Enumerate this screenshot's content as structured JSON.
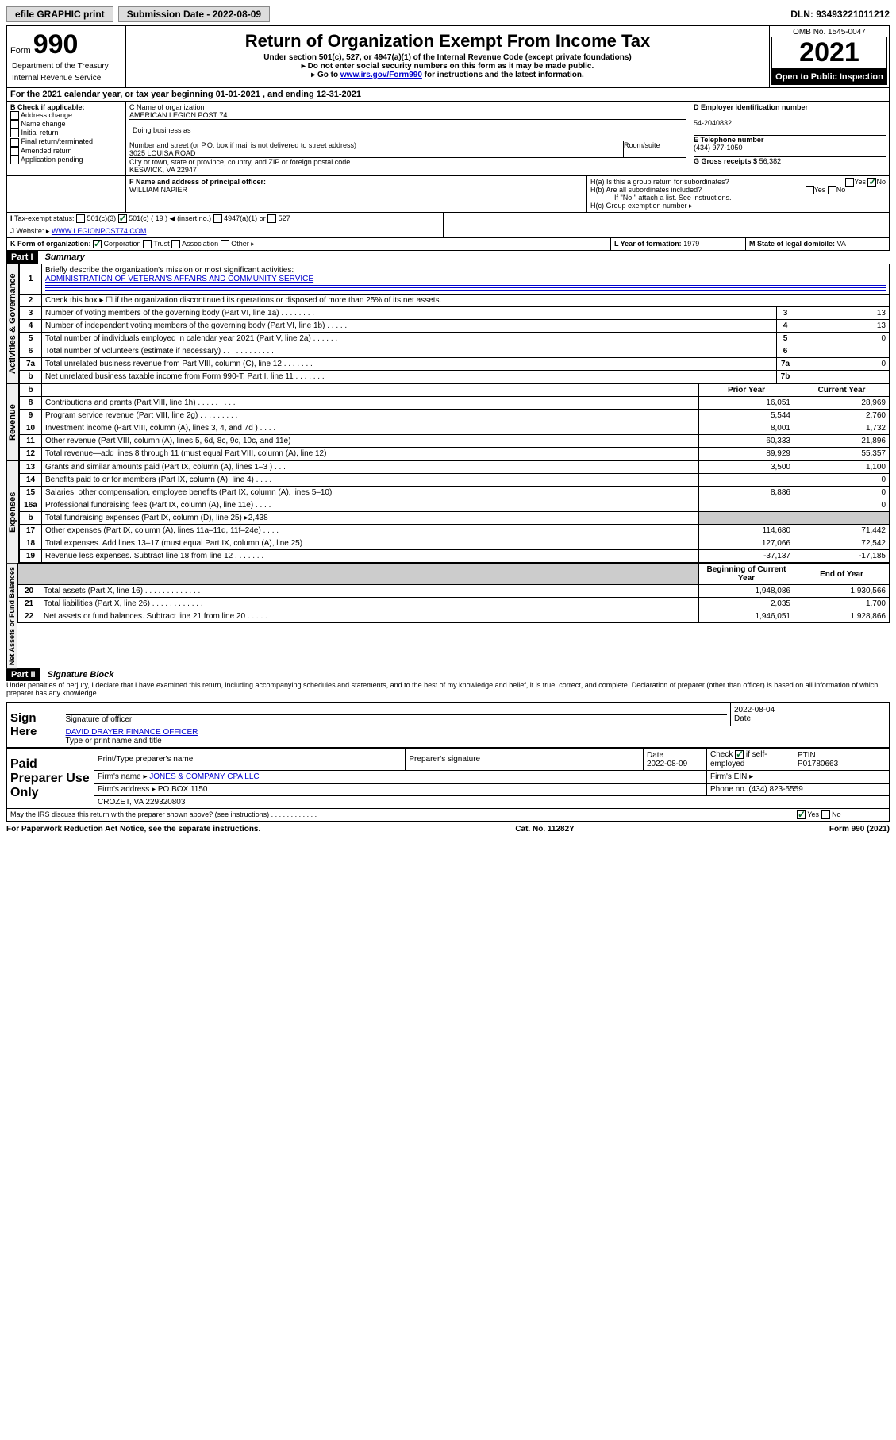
{
  "topbar": {
    "efile": "efile GRAPHIC print",
    "sub_label": "Submission Date - 2022-08-09",
    "dln": "DLN: 93493221011212"
  },
  "header": {
    "form_word": "Form",
    "form_num": "990",
    "dept1": "Department of the Treasury",
    "dept2": "Internal Revenue Service",
    "title": "Return of Organization Exempt From Income Tax",
    "sub1": "Under section 501(c), 527, or 4947(a)(1) of the Internal Revenue Code (except private foundations)",
    "sub2": "▸ Do not enter social security numbers on this form as it may be made public.",
    "sub3_pre": "▸ Go to ",
    "sub3_link": "www.irs.gov/Form990",
    "sub3_post": " for instructions and the latest information.",
    "omb": "OMB No. 1545-0047",
    "year": "2021",
    "open": "Open to Public Inspection"
  },
  "periodA": "For the 2021 calendar year, or tax year beginning 01-01-2021    , and ending 12-31-2021",
  "boxB": {
    "label": "B Check if applicable:",
    "items": [
      "Address change",
      "Name change",
      "Initial return",
      "Final return/terminated",
      "Amended return",
      "Application pending"
    ]
  },
  "boxC": {
    "name_label": "C Name of organization",
    "name": "AMERICAN LEGION POST 74",
    "dba_label": "Doing business as",
    "addr_label": "Number and street (or P.O. box if mail is not delivered to street address)",
    "room_label": "Room/suite",
    "addr": "3025 LOUISA ROAD",
    "city_label": "City or town, state or province, country, and ZIP or foreign postal code",
    "city": "KESWICK, VA  22947"
  },
  "boxD": {
    "label": "D Employer identification number",
    "value": "54-2040832"
  },
  "boxE": {
    "label": "E Telephone number",
    "value": "(434) 977-1050"
  },
  "boxG": {
    "label": "G Gross receipts $",
    "value": "56,382"
  },
  "boxF": {
    "label": "F Name and address of principal officer:",
    "value": "WILLIAM NAPIER"
  },
  "boxH": {
    "ha": "H(a)  Is this a group return for subordinates?",
    "hb": "H(b)  Are all subordinates included?",
    "hb_note": "If \"No,\" attach a list. See instructions.",
    "hc": "H(c)  Group exemption number ▸"
  },
  "yn": {
    "yes": "Yes",
    "no": "No"
  },
  "lineI": {
    "label": "Tax-exempt status:",
    "opts": [
      "501(c)(3)",
      "501(c) ( 19 ) ◀ (insert no.)",
      "4947(a)(1) or",
      "527"
    ]
  },
  "lineJ": {
    "label": "Website: ▸",
    "value": "WWW.LEGIONPOST74.COM"
  },
  "lineK": {
    "label": "K Form of organization:",
    "opts": [
      "Corporation",
      "Trust",
      "Association",
      "Other ▸"
    ]
  },
  "lineL": {
    "label": "L Year of formation:",
    "value": "1979"
  },
  "lineM": {
    "label": "M State of legal domicile:",
    "value": "VA"
  },
  "part1": {
    "hdr": "Part I",
    "title": "Summary"
  },
  "summary": {
    "q1": "Briefly describe the organization's mission or most significant activities:",
    "q1v": "ADMINISTRATION OF VETERAN'S AFFAIRS AND COMMUNITY SERVICE",
    "q2": "Check this box ▸ ☐ if the organization discontinued its operations or disposed of more than 25% of its net assets.",
    "rows_gov": [
      {
        "n": "3",
        "t": "Number of voting members of the governing body (Part VI, line 1a)   .   .   .   .   .   .   .   .",
        "l": "3",
        "v": "13"
      },
      {
        "n": "4",
        "t": "Number of independent voting members of the governing body (Part VI, line 1b)  .   .   .   .   .",
        "l": "4",
        "v": "13"
      },
      {
        "n": "5",
        "t": "Total number of individuals employed in calendar year 2021 (Part V, line 2a)  .   .   .   .   .   .",
        "l": "5",
        "v": "0"
      },
      {
        "n": "6",
        "t": "Total number of volunteers (estimate if necessary)   .   .   .   .   .   .   .   .   .   .   .   .",
        "l": "6",
        "v": ""
      },
      {
        "n": "7a",
        "t": "Total unrelated business revenue from Part VIII, column (C), line 12  .   .   .   .   .   .   .",
        "l": "7a",
        "v": "0"
      },
      {
        "n": "b",
        "t": "Net unrelated business taxable income from Form 990-T, Part I, line 11  .   .   .   .   .   .   .",
        "l": "7b",
        "v": ""
      }
    ],
    "col_prior": "Prior Year",
    "col_current": "Current Year",
    "rows_rev": [
      {
        "n": "8",
        "t": "Contributions and grants (Part VIII, line 1h)   .   .   .   .   .   .   .   .   .",
        "p": "16,051",
        "c": "28,969"
      },
      {
        "n": "9",
        "t": "Program service revenue (Part VIII, line 2g)   .   .   .   .   .   .   .   .   .",
        "p": "5,544",
        "c": "2,760"
      },
      {
        "n": "10",
        "t": "Investment income (Part VIII, column (A), lines 3, 4, and 7d )   .   .   .   .",
        "p": "8,001",
        "c": "1,732"
      },
      {
        "n": "11",
        "t": "Other revenue (Part VIII, column (A), lines 5, 6d, 8c, 9c, 10c, and 11e)",
        "p": "60,333",
        "c": "21,896"
      },
      {
        "n": "12",
        "t": "Total revenue—add lines 8 through 11 (must equal Part VIII, column (A), line 12)",
        "p": "89,929",
        "c": "55,357"
      }
    ],
    "rows_exp": [
      {
        "n": "13",
        "t": "Grants and similar amounts paid (Part IX, column (A), lines 1–3 )   .   .   .",
        "p": "3,500",
        "c": "1,100"
      },
      {
        "n": "14",
        "t": "Benefits paid to or for members (Part IX, column (A), line 4)   .   .   .   .",
        "p": "",
        "c": "0"
      },
      {
        "n": "15",
        "t": "Salaries, other compensation, employee benefits (Part IX, column (A), lines 5–10)",
        "p": "8,886",
        "c": "0"
      },
      {
        "n": "16a",
        "t": "Professional fundraising fees (Part IX, column (A), line 11e)   .   .   .   .",
        "p": "",
        "c": "0"
      },
      {
        "n": "b",
        "t": "Total fundraising expenses (Part IX, column (D), line 25) ▸2,438",
        "p": "GREY",
        "c": "GREY"
      },
      {
        "n": "17",
        "t": "Other expenses (Part IX, column (A), lines 11a–11d, 11f–24e)  .   .   .   .",
        "p": "114,680",
        "c": "71,442"
      },
      {
        "n": "18",
        "t": "Total expenses. Add lines 13–17 (must equal Part IX, column (A), line 25)",
        "p": "127,066",
        "c": "72,542"
      },
      {
        "n": "19",
        "t": "Revenue less expenses. Subtract line 18 from line 12   .   .   .   .   .   .   .",
        "p": "-37,137",
        "c": "-17,185"
      }
    ],
    "col_begin": "Beginning of Current Year",
    "col_end": "End of Year",
    "rows_net": [
      {
        "n": "20",
        "t": "Total assets (Part X, line 16)   .   .   .   .   .   .   .   .   .   .   .   .   .",
        "p": "1,948,086",
        "c": "1,930,566"
      },
      {
        "n": "21",
        "t": "Total liabilities (Part X, line 26)   .   .   .   .   .   .   .   .   .   .   .   .",
        "p": "2,035",
        "c": "1,700"
      },
      {
        "n": "22",
        "t": "Net assets or fund balances. Subtract line 21 from line 20   .   .   .   .   .",
        "p": "1,946,051",
        "c": "1,928,866"
      }
    ]
  },
  "vlabels": {
    "gov": "Activities & Governance",
    "rev": "Revenue",
    "exp": "Expenses",
    "net": "Net Assets or Fund Balances"
  },
  "part2": {
    "hdr": "Part II",
    "title": "Signature Block"
  },
  "perjury": "Under penalties of perjury, I declare that I have examined this return, including accompanying schedules and statements, and to the best of my knowledge and belief, it is true, correct, and complete. Declaration of preparer (other than officer) is based on all information of which preparer has any knowledge.",
  "sign": {
    "here": "Sign Here",
    "sig_label": "Signature of officer",
    "date_label": "Date",
    "date": "2022-08-04",
    "name": "DAVID DRAYER FINANCE OFFICER",
    "name_label": "Type or print name and title"
  },
  "paid": {
    "label": "Paid Preparer Use Only",
    "c1": "Print/Type preparer's name",
    "c2": "Preparer's signature",
    "c3": "Date",
    "c3v": "2022-08-09",
    "c4": "Check ☑ if self-employed",
    "c5": "PTIN",
    "c5v": "P01780663",
    "firm_label": "Firm's name ▸",
    "firm": "JONES & COMPANY CPA LLC",
    "ein_label": "Firm's EIN ▸",
    "addr_label": "Firm's address ▸",
    "addr1": "PO BOX 1150",
    "addr2": "CROZET, VA  229320803",
    "phone_label": "Phone no.",
    "phone": "(434) 823-5559"
  },
  "discuss": "May the IRS discuss this return with the preparer shown above? (see instructions)   .   .   .   .   .   .   .   .   .   .   .   .",
  "footer": {
    "left": "For Paperwork Reduction Act Notice, see the separate instructions.",
    "mid": "Cat. No. 11282Y",
    "right": "Form 990 (2021)"
  }
}
